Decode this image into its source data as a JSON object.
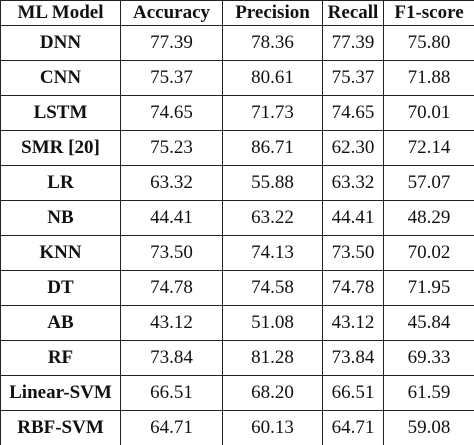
{
  "table": {
    "header": [
      "ML Model",
      "Accuracy",
      "Precision",
      "Recall",
      "F1-score"
    ],
    "rows": [
      [
        "DNN",
        "77.39",
        "78.36",
        "77.39",
        "75.80"
      ],
      [
        "CNN",
        "75.37",
        "80.61",
        "75.37",
        "71.88"
      ],
      [
        "LSTM",
        "74.65",
        "71.73",
        "74.65",
        "70.01"
      ],
      [
        "SMR [20]",
        "75.23",
        "86.71",
        "62.30",
        "72.14"
      ],
      [
        "LR",
        "63.32",
        "55.88",
        "63.32",
        "57.07"
      ],
      [
        "NB",
        "44.41",
        "63.22",
        "44.41",
        "48.29"
      ],
      [
        "KNN",
        "73.50",
        "74.13",
        "73.50",
        "70.02"
      ],
      [
        "DT",
        "74.78",
        "74.58",
        "74.78",
        "71.95"
      ],
      [
        "AB",
        "43.12",
        "51.08",
        "43.12",
        "45.84"
      ],
      [
        "RF",
        "73.84",
        "81.28",
        "73.84",
        "69.33"
      ],
      [
        "Linear-SVM",
        "66.51",
        "68.20",
        "66.51",
        "61.59"
      ],
      [
        "RBF-SVM",
        "64.71",
        "60.13",
        "64.71",
        "59.08"
      ]
    ]
  }
}
